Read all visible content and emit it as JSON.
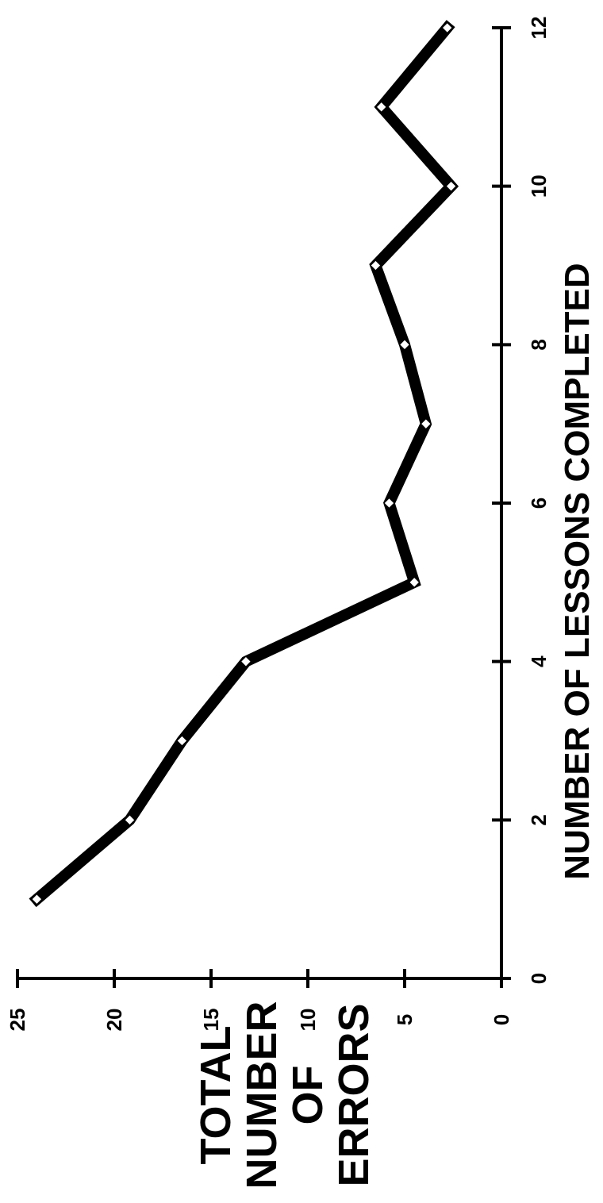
{
  "chart_data": {
    "type": "line",
    "orientation": "rotated 90° clockwise",
    "x": [
      1,
      2,
      3,
      4,
      5,
      6,
      7,
      8,
      9,
      10,
      11,
      12
    ],
    "series": [
      {
        "values": [
          24,
          19.2,
          16.5,
          13.2,
          4.5,
          5.8,
          3.9,
          5,
          6.5,
          2.6,
          6.2,
          2.8
        ]
      }
    ],
    "xlabel": "NUMBER OF LESSONS COMPLETED",
    "ylabel": [
      "TOTAL",
      "NUMBER",
      "OF",
      "ERRORS"
    ],
    "xlim": [
      0,
      12
    ],
    "ylim": [
      0,
      25
    ],
    "x_ticks": [
      "0",
      "2",
      "4",
      "6",
      "8",
      "10",
      "12"
    ],
    "y_ticks": [
      "0",
      "5",
      "10",
      "15",
      "20",
      "25"
    ],
    "grid": false,
    "line_color": "#000000",
    "marker_fill": "#ffffff"
  }
}
